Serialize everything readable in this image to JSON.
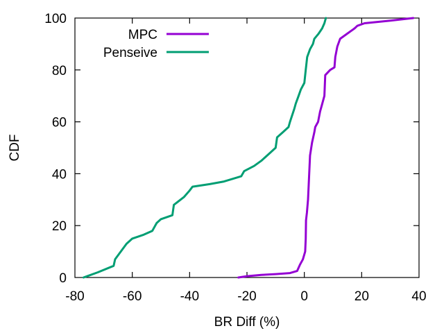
{
  "chart_data": {
    "type": "line",
    "title": "",
    "xlabel": "BR Diff (%)",
    "ylabel": "CDF",
    "xlim": [
      -80,
      40
    ],
    "ylim": [
      0,
      100
    ],
    "xticks": [
      "-80",
      "-60",
      "-40",
      "-20",
      "0",
      "20",
      "40"
    ],
    "yticks": [
      "0",
      "20",
      "40",
      "60",
      "80",
      "100"
    ],
    "grid": false,
    "legend_position": "top-left",
    "series": [
      {
        "name": "MPC",
        "color": "#9400d3",
        "points": [
          [
            -23,
            0
          ],
          [
            -20,
            0.5
          ],
          [
            -15,
            1
          ],
          [
            -10,
            1.3
          ],
          [
            -5,
            1.7
          ],
          [
            -2.5,
            2.5
          ],
          [
            -1.5,
            5
          ],
          [
            -0.5,
            7
          ],
          [
            0.3,
            10
          ],
          [
            0.5,
            15
          ],
          [
            0.6,
            22
          ],
          [
            0.9,
            25
          ],
          [
            1.3,
            30
          ],
          [
            1.7,
            40
          ],
          [
            2,
            47
          ],
          [
            2.7,
            52
          ],
          [
            3.5,
            56
          ],
          [
            3.8,
            58
          ],
          [
            4.8,
            60
          ],
          [
            5.5,
            64
          ],
          [
            6,
            66
          ],
          [
            7,
            70
          ],
          [
            7.3,
            78
          ],
          [
            9,
            80
          ],
          [
            10.5,
            81
          ],
          [
            10.8,
            85
          ],
          [
            11.5,
            89
          ],
          [
            12.5,
            92
          ],
          [
            15,
            94
          ],
          [
            17.5,
            96
          ],
          [
            18.5,
            97
          ],
          [
            21,
            98
          ],
          [
            30,
            99
          ],
          [
            38,
            100
          ]
        ]
      },
      {
        "name": "Penseive",
        "color": "#009e73",
        "points": [
          [
            -77,
            0
          ],
          [
            -72,
            2
          ],
          [
            -66.5,
            4.5
          ],
          [
            -66,
            7
          ],
          [
            -64,
            10
          ],
          [
            -62,
            13
          ],
          [
            -60,
            15
          ],
          [
            -56,
            16.5
          ],
          [
            -53,
            18
          ],
          [
            -51.5,
            21
          ],
          [
            -50,
            22.5
          ],
          [
            -46,
            24
          ],
          [
            -45.5,
            28
          ],
          [
            -42,
            31
          ],
          [
            -40,
            33.5
          ],
          [
            -39,
            35
          ],
          [
            -33,
            36
          ],
          [
            -28,
            37
          ],
          [
            -22,
            39
          ],
          [
            -21,
            41
          ],
          [
            -17.5,
            43
          ],
          [
            -15,
            45
          ],
          [
            -12,
            48
          ],
          [
            -10,
            50
          ],
          [
            -9.5,
            54
          ],
          [
            -7.5,
            56
          ],
          [
            -5.5,
            58
          ],
          [
            -5,
            60
          ],
          [
            -3.5,
            65
          ],
          [
            -3,
            67
          ],
          [
            -2,
            70
          ],
          [
            -1.2,
            72.5
          ],
          [
            0,
            75
          ],
          [
            0.5,
            80
          ],
          [
            1,
            85
          ],
          [
            2,
            88
          ],
          [
            3,
            90
          ],
          [
            3.5,
            92
          ],
          [
            5,
            94
          ],
          [
            6.2,
            96
          ],
          [
            7,
            98
          ],
          [
            7.5,
            100
          ]
        ]
      }
    ]
  }
}
